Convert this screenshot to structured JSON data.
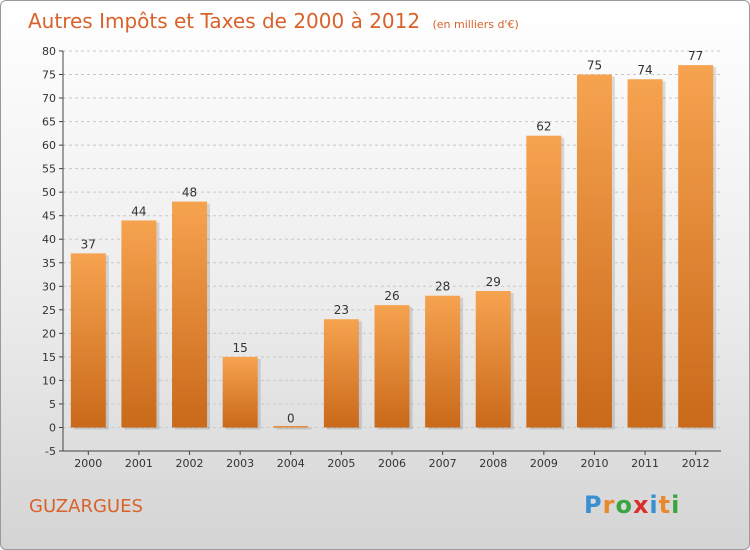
{
  "header": {
    "title": "Autres Impôts et Taxes de 2000 à 2012",
    "subtitle": "(en milliers d'€)"
  },
  "footer": {
    "commune": "GUZARGUES",
    "brand": "Proxiti",
    "brand_letters": [
      {
        "ch": "P",
        "color": "#3a8fd0"
      },
      {
        "ch": "r",
        "color": "#e8892c"
      },
      {
        "ch": "o",
        "color": "#3aa541"
      },
      {
        "ch": "x",
        "color": "#d9302b"
      },
      {
        "ch": "i",
        "color": "#3a8fd0"
      },
      {
        "ch": "t",
        "color": "#e8892c"
      },
      {
        "ch": "i",
        "color": "#3aa541"
      }
    ]
  },
  "colors": {
    "bar_top": "#f6a350",
    "bar_bottom": "#c9691a",
    "title": "#d9622b",
    "grid": "#c8c8c8",
    "axis": "#444444"
  },
  "chart_data": {
    "type": "bar",
    "title": "Autres Impôts et Taxes de 2000 à 2012",
    "subtitle": "(en milliers d'€)",
    "categories": [
      "2000",
      "2001",
      "2002",
      "2003",
      "2004",
      "2005",
      "2006",
      "2007",
      "2008",
      "2009",
      "2010",
      "2011",
      "2012"
    ],
    "values": [
      37,
      44,
      48,
      15,
      0,
      23,
      26,
      28,
      29,
      62,
      75,
      74,
      77
    ],
    "data_labels": [
      "37",
      "44",
      "48",
      "15",
      "0",
      "23",
      "26",
      "28",
      "29",
      "62",
      "75",
      "74",
      "77"
    ],
    "ylim": [
      -5,
      80
    ],
    "yticks": [
      -5,
      0,
      5,
      10,
      15,
      20,
      25,
      30,
      35,
      40,
      45,
      50,
      55,
      60,
      65,
      70,
      75,
      80
    ],
    "grid": true,
    "xlabel": "",
    "ylabel": ""
  }
}
